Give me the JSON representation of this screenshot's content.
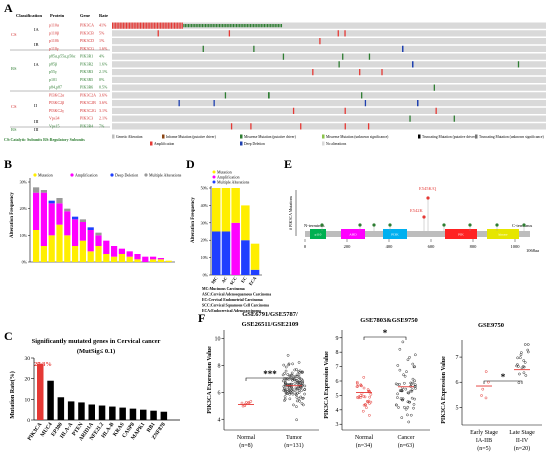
{
  "panels": {
    "A": {
      "label": "A",
      "headers": [
        "Classification",
        "Protein",
        "Gene",
        "Rate"
      ],
      "groups": [
        {
          "name": "CS",
          "color": "#d32f2f"
        },
        {
          "name": "RS",
          "color": "#2e7d32"
        },
        {
          "name": "CS",
          "color": "#d32f2f"
        },
        {
          "name": "RS",
          "color": "#2e7d32"
        }
      ],
      "classes": [
        "IA",
        "IB",
        "IA",
        "II",
        "III",
        "III"
      ],
      "rows": [
        {
          "protein": "p110α",
          "gene": "PIK3CA",
          "rate": "41%",
          "color": "#d32f2f"
        },
        {
          "protein": "p110β",
          "gene": "PIK3CB",
          "rate": "5%",
          "color": "#d32f2f"
        },
        {
          "protein": "p110δ",
          "gene": "PIK3CD",
          "rate": "1%",
          "color": "#d32f2f"
        },
        {
          "protein": "p110γ",
          "gene": "PIK3CG",
          "rate": "1.6%",
          "color": "#d32f2f"
        },
        {
          "protein": "p85α,p55α,p50α",
          "gene": "PIK3R1",
          "rate": "4%",
          "color": "#2e7d32"
        },
        {
          "protein": "p85β",
          "gene": "PIK3R2",
          "rate": "1.6%",
          "color": "#2e7d32"
        },
        {
          "protein": "p55γ",
          "gene": "PIK3R3",
          "rate": "2.1%",
          "color": "#2e7d32"
        },
        {
          "protein": "p101",
          "gene": "PIK3R5",
          "rate": "0%",
          "color": "#2e7d32"
        },
        {
          "protein": "p84,p87",
          "gene": "PIK3R6",
          "rate": "0.5%",
          "color": "#2e7d32"
        },
        {
          "protein": "PI3KC2α",
          "gene": "PIK3C2A",
          "rate": "3.6%",
          "color": "#d32f2f"
        },
        {
          "protein": "PI3KC2β",
          "gene": "PIK3C2B",
          "rate": "3.6%",
          "color": "#d32f2f"
        },
        {
          "protein": "PI3KC2γ",
          "gene": "PIK3C2G",
          "rate": "3.1%",
          "color": "#d32f2f"
        },
        {
          "protein": "Vps34",
          "gene": "PIK3C3",
          "rate": "2.1%",
          "color": "#d32f2f"
        },
        {
          "protein": "Vps15",
          "gene": "PIK3R4",
          "rate": "7%",
          "color": "#2e7d32"
        }
      ],
      "footnote": "CS:Catalytic Subunits  RS:Regulatory Subunits",
      "legend": [
        {
          "label": "Genetic Alteration",
          "color": "#bdbdbd"
        },
        {
          "label": "Inframe Mutation (putative driver)",
          "color": "#8b4513"
        },
        {
          "label": "Missense Mutation (putative driver)",
          "color": "#2e7d32"
        },
        {
          "label": "Missense Mutation (unknown significance)",
          "color": "#8bc34a"
        },
        {
          "label": "Truncating Mutation (putative driver)",
          "color": "#000000"
        },
        {
          "label": "Truncating Mutation (unknown significance)",
          "color": "#757575"
        },
        {
          "label": "Amplification",
          "color": "#e53935"
        },
        {
          "label": "Deep Deletion",
          "color": "#1e40af"
        },
        {
          "label": "No alterations",
          "color": "#d9d9d9"
        }
      ]
    },
    "B": {
      "label": "B",
      "ylabel": "Alteration Frequency",
      "legend": [
        "Mutation",
        "Amplification",
        "Deep Deletion",
        "Multiple Alterations"
      ],
      "colors": {
        "mutation": "#ffee00",
        "amplification": "#ff00ff",
        "deletion": "#1f3fff",
        "multiple": "#999999"
      },
      "yticks": [
        "0%",
        "10%",
        "20%",
        "30%"
      ]
    },
    "C": {
      "label": "C",
      "title": "Significantly mutated genes in Cervical cancer",
      "subtitle": "(MutSig≤ 0.1)",
      "ylabel": "Mutation Rate(%)",
      "highlight": "27.3%",
      "yticks": [
        "0",
        "10",
        "20",
        "30"
      ]
    },
    "D": {
      "label": "D",
      "ylabel": "Alteration Frequency",
      "legend": [
        "Mutation",
        "Amplification",
        "Multiple Alterations"
      ],
      "yticks": [
        "0%",
        "10%",
        "20%",
        "30%",
        "40%",
        "50%"
      ],
      "categories": [
        "MC",
        "AC",
        "SCC",
        "EC",
        "ECA"
      ],
      "footnotes": [
        "MC:Mucinous Carcinoma",
        "ASC:Cervical Adenosquamous Carcinoma",
        "EC:Cervical Endometrial Carcinoma",
        "SCC:Cervical Squamous Cell Carcinoma",
        "ECA:Endocervical Adenocarcinoma"
      ]
    },
    "E": {
      "label": "E",
      "ylabel": "# PIK3CA Mutations",
      "n_terminus": "N-terminus",
      "c_terminus": "C-terminus",
      "mut1": "E545K/Q",
      "mut2": "E542K",
      "length_label": "1068aa",
      "domains": [
        "p110",
        "ABD",
        "PI3K",
        "PIK",
        "kinase"
      ],
      "xticks": [
        "0",
        "200",
        "400",
        "600",
        "800",
        "1000"
      ]
    },
    "F": {
      "label": "F",
      "ylabel": "PIK3CA Expression Value",
      "plot1": {
        "title": "GSE6791/GSE5787/\nGSE26511/GSE2109",
        "yticks": [
          "4",
          "6",
          "8",
          "10"
        ],
        "groups": [
          {
            "name": "Normal",
            "n": "(n=8)"
          },
          {
            "name": "Tumor",
            "n": "(n=131)"
          }
        ],
        "sig": "***"
      },
      "plot2": {
        "title": "GSE7803&GSE9750",
        "yticks": [
          "3",
          "4",
          "5",
          "6",
          "7",
          "8",
          "9"
        ],
        "groups": [
          {
            "name": "Normal",
            "n": "(n=34)"
          },
          {
            "name": "Cancer",
            "n": "(n=63)"
          }
        ],
        "sig": "*"
      },
      "plot3": {
        "title": "GSE9750",
        "yticks": [
          "5",
          "6",
          "7"
        ],
        "groups": [
          {
            "name": "Early Stage",
            "sub": "IA-IIB",
            "n": "(n=5)"
          },
          {
            "name": "Late Stage",
            "sub": "II-IV",
            "n": "(n=20)"
          }
        ],
        "sig": "*"
      }
    }
  }
}
